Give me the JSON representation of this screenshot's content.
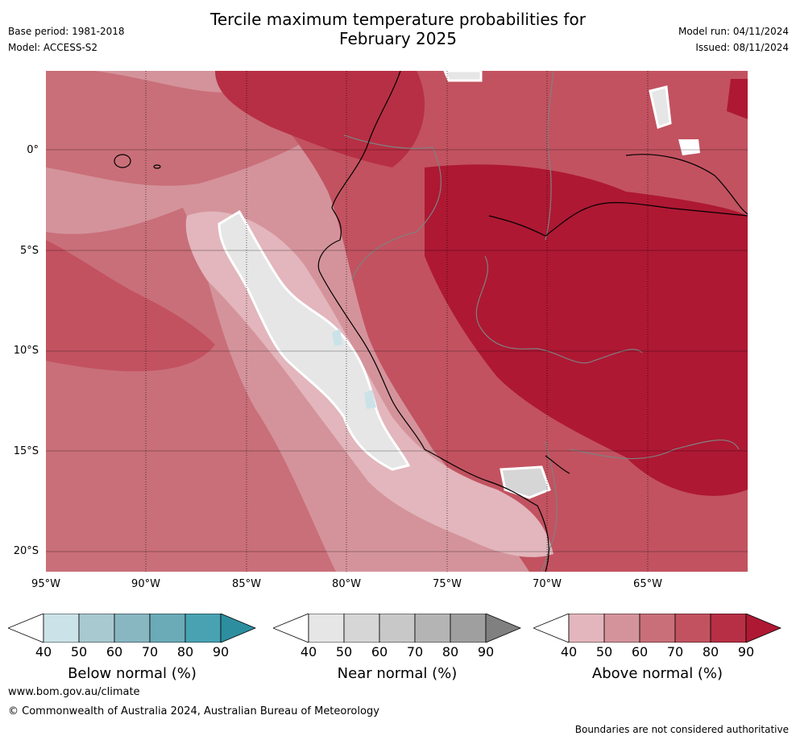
{
  "title": {
    "line1": "Tercile maximum temperature probabilities for",
    "line2": "February 2025"
  },
  "meta_left": {
    "base_period": "Base period: 1981-2018",
    "model": "Model: ACCESS-S2"
  },
  "meta_right": {
    "model_run": "Model run: 04/11/2024",
    "issued": "Issued: 08/11/2024"
  },
  "map": {
    "lat_labels": [
      "0°",
      "5°S",
      "10°S",
      "15°S",
      "20°S"
    ],
    "lon_labels": [
      "95°W",
      "90°W",
      "85°W",
      "80°W",
      "75°W",
      "70°W",
      "65°W"
    ],
    "extent": {
      "lon_min": -95,
      "lon_max": -60,
      "lat_min": -21,
      "lat_max": 4
    },
    "gridlines": true
  },
  "colorbars": [
    {
      "label": "Below normal (%)",
      "ticks": [
        "40",
        "50",
        "60",
        "70",
        "80",
        "90"
      ],
      "colors": [
        "#ffffff",
        "#cbe3e8",
        "#a8c9cf",
        "#88b6c1",
        "#6aabb7",
        "#48a2b2",
        "#2d8ea0"
      ]
    },
    {
      "label": "Near normal (%)",
      "ticks": [
        "40",
        "50",
        "60",
        "70",
        "80",
        "90"
      ],
      "colors": [
        "#ffffff",
        "#e6e6e6",
        "#d6d6d6",
        "#c8c8c8",
        "#b4b4b4",
        "#9f9f9f",
        "#808080"
      ]
    },
    {
      "label": "Above normal (%)",
      "ticks": [
        "40",
        "50",
        "60",
        "70",
        "80",
        "90"
      ],
      "colors": [
        "#ffffff",
        "#e2b6bc",
        "#d4939b",
        "#c96f79",
        "#c25260",
        "#b72f44",
        "#ae1833"
      ]
    }
  ],
  "footer": {
    "url": "www.bom.gov.au/climate",
    "copyright": "© Commonwealth of Australia 2024, Australian Bureau of Meteorology",
    "disclaimer": "Boundaries are not considered authoritative"
  }
}
